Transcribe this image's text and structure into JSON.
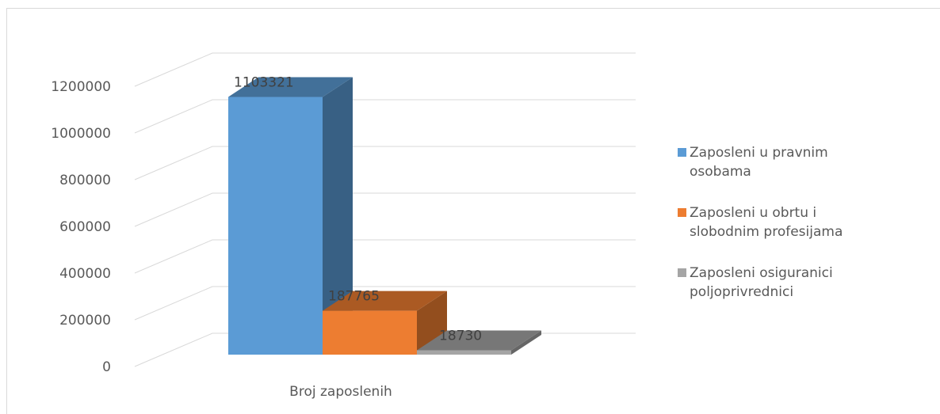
{
  "chart_data": {
    "type": "bar",
    "categories": [
      "Broj zaposlenih"
    ],
    "series": [
      {
        "name": "Zaposleni u pravnim osobama",
        "values": [
          1103321
        ],
        "color": "#5b9bd5"
      },
      {
        "name": "Zaposleni u obrtu i slobodnim profesijama",
        "values": [
          187765
        ],
        "color": "#ed7d31"
      },
      {
        "name": "Zaposleni osiguranici poljoprivrednici",
        "values": [
          18730
        ],
        "color": "#a5a5a5"
      }
    ],
    "data_labels": [
      "1103321",
      "187765",
      "18730"
    ],
    "y_ticks": [
      "0",
      "200000",
      "400000",
      "600000",
      "800000",
      "1000000",
      "1200000"
    ],
    "ylim": [
      0,
      1200000
    ],
    "legend_lines": [
      [
        "Zaposleni u pravnim",
        "osobama"
      ],
      [
        "Zaposleni u obrtu i",
        "slobodnim profesijama"
      ],
      [
        "Zaposleni osiguranici",
        "poljoprivrednici"
      ]
    ],
    "grid": true,
    "legend_position": "right",
    "three_d": true
  }
}
